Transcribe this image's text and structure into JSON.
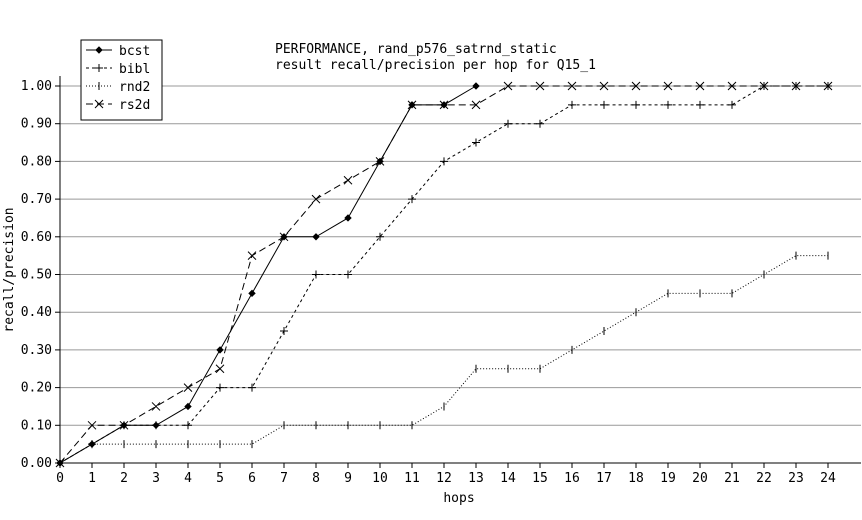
{
  "chart_data": {
    "type": "line",
    "title": "PERFORMANCE, rand_p576_satrnd_static",
    "subtitle": "result recall/precision per hop for Q15_1",
    "xlabel": "hops",
    "ylabel": "recall/precision",
    "xlim": [
      0,
      24
    ],
    "ylim": [
      0,
      1.0
    ],
    "x_ticks": [
      "0",
      "1",
      "2",
      "3",
      "4",
      "5",
      "6",
      "7",
      "8",
      "9",
      "10",
      "11",
      "12",
      "13",
      "14",
      "15",
      "16",
      "17",
      "18",
      "19",
      "20",
      "21",
      "22",
      "23",
      "24"
    ],
    "y_ticks": [
      "0.00",
      "0.10",
      "0.20",
      "0.30",
      "0.40",
      "0.50",
      "0.60",
      "0.70",
      "0.80",
      "0.90",
      "1.00"
    ],
    "grid": "horizontal",
    "legend_position": "top-left",
    "series": [
      {
        "name": "bcst",
        "marker": "diamond",
        "dash": "solid",
        "x": [
          0,
          1,
          2,
          3,
          4,
          5,
          6,
          7,
          8,
          9,
          10,
          11,
          12,
          13
        ],
        "values": [
          0.0,
          0.05,
          0.1,
          0.1,
          0.15,
          0.3,
          0.45,
          0.6,
          0.6,
          0.65,
          0.8,
          0.95,
          0.95,
          1.0
        ]
      },
      {
        "name": "bibl",
        "marker": "plus",
        "dash": "dashed",
        "x": [
          0,
          1,
          2,
          3,
          4,
          5,
          6,
          7,
          8,
          9,
          10,
          11,
          12,
          13,
          14,
          15,
          16,
          17,
          18,
          19,
          20,
          21,
          22,
          23,
          24
        ],
        "values": [
          0.0,
          0.05,
          0.1,
          0.1,
          0.1,
          0.2,
          0.2,
          0.35,
          0.5,
          0.5,
          0.6,
          0.7,
          0.8,
          0.85,
          0.9,
          0.9,
          0.95,
          0.95,
          0.95,
          0.95,
          0.95,
          0.95,
          1.0,
          1.0,
          1.0
        ]
      },
      {
        "name": "rnd2",
        "marker": "tick",
        "dash": "dotted",
        "x": [
          0,
          1,
          2,
          3,
          4,
          5,
          6,
          7,
          8,
          9,
          10,
          11,
          12,
          13,
          14,
          15,
          16,
          17,
          18,
          19,
          20,
          21,
          22,
          23,
          24
        ],
        "values": [
          0.0,
          0.05,
          0.05,
          0.05,
          0.05,
          0.05,
          0.05,
          0.1,
          0.1,
          0.1,
          0.1,
          0.1,
          0.15,
          0.25,
          0.25,
          0.25,
          0.3,
          0.35,
          0.4,
          0.45,
          0.45,
          0.45,
          0.5,
          0.55,
          0.55
        ]
      },
      {
        "name": "rs2d",
        "marker": "star",
        "dash": "longdash",
        "x": [
          0,
          1,
          2,
          3,
          4,
          5,
          6,
          7,
          8,
          9,
          10,
          11,
          12,
          13,
          14,
          15,
          16,
          17,
          18,
          19,
          20,
          21,
          22,
          23,
          24
        ],
        "values": [
          0.0,
          0.1,
          0.1,
          0.15,
          0.2,
          0.25,
          0.55,
          0.6,
          0.7,
          0.75,
          0.8,
          0.95,
          0.95,
          0.95,
          1.0,
          1.0,
          1.0,
          1.0,
          1.0,
          1.0,
          1.0,
          1.0,
          1.0,
          1.0,
          1.0
        ]
      }
    ]
  }
}
